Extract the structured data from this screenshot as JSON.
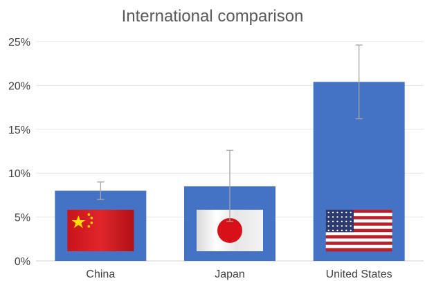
{
  "chart_data": {
    "type": "bar",
    "title": "International comparison",
    "xlabel": "",
    "ylabel": "",
    "categories": [
      "China",
      "Japan",
      "United States"
    ],
    "values": [
      0.08,
      0.085,
      0.204
    ],
    "error_low": [
      0.07,
      0.045,
      0.162
    ],
    "error_high": [
      0.09,
      0.126,
      0.246
    ],
    "ylim": [
      0,
      0.25
    ],
    "yticks": [
      0,
      0.05,
      0.1,
      0.15,
      0.2,
      0.25
    ],
    "ytick_labels": [
      "0%",
      "5%",
      "10%",
      "15%",
      "20%",
      "25%"
    ],
    "grid": true,
    "bar_color": "#4472C4",
    "error_color": "#A5A5A5",
    "flag_icons": [
      "china-flag-icon",
      "japan-flag-icon",
      "us-flag-icon"
    ]
  }
}
